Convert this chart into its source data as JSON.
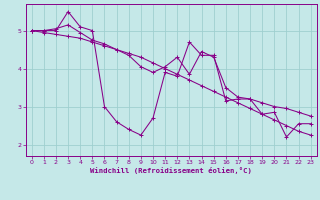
{
  "xlabel": "Windchill (Refroidissement éolien,°C)",
  "xlim": [
    -0.5,
    23.5
  ],
  "ylim": [
    1.7,
    5.7
  ],
  "xticks": [
    0,
    1,
    2,
    3,
    4,
    5,
    6,
    7,
    8,
    9,
    10,
    11,
    12,
    13,
    14,
    15,
    16,
    17,
    18,
    19,
    20,
    21,
    22,
    23
  ],
  "yticks": [
    2,
    3,
    4,
    5
  ],
  "bg_color": "#c5e8e8",
  "grid_color": "#9fcfcf",
  "line_color": "#880088",
  "line1_x": [
    0,
    1,
    2,
    3,
    4,
    5,
    6,
    7,
    8,
    9,
    10,
    11,
    12,
    13,
    14,
    15,
    16,
    17,
    18,
    19,
    20,
    21,
    22,
    23
  ],
  "line1_y": [
    5.0,
    4.95,
    4.9,
    4.85,
    4.8,
    4.7,
    4.6,
    4.5,
    4.4,
    4.3,
    4.15,
    4.0,
    3.85,
    3.7,
    3.55,
    3.4,
    3.25,
    3.1,
    2.95,
    2.8,
    2.65,
    2.5,
    2.35,
    2.25
  ],
  "line2_x": [
    0,
    1,
    2,
    3,
    4,
    5,
    6,
    7,
    8,
    9,
    10,
    11,
    12,
    13,
    14,
    15,
    16,
    17,
    18,
    19,
    20,
    21,
    22,
    23
  ],
  "line2_y": [
    5.0,
    5.0,
    5.0,
    5.5,
    5.1,
    5.0,
    3.0,
    2.6,
    2.4,
    2.25,
    2.7,
    3.9,
    3.8,
    4.7,
    4.35,
    4.35,
    3.15,
    3.2,
    3.2,
    2.8,
    2.85,
    2.2,
    2.55,
    2.55
  ],
  "line3_x": [
    0,
    1,
    2,
    3,
    4,
    5,
    6,
    7,
    8,
    9,
    10,
    11,
    12,
    13,
    14,
    15,
    16,
    17,
    18,
    19,
    20,
    21,
    22,
    23
  ],
  "line3_y": [
    5.0,
    5.0,
    5.05,
    5.15,
    4.95,
    4.75,
    4.65,
    4.5,
    4.35,
    4.05,
    3.9,
    4.05,
    4.3,
    3.85,
    4.45,
    4.3,
    3.5,
    3.25,
    3.2,
    3.1,
    3.0,
    2.95,
    2.85,
    2.75
  ]
}
